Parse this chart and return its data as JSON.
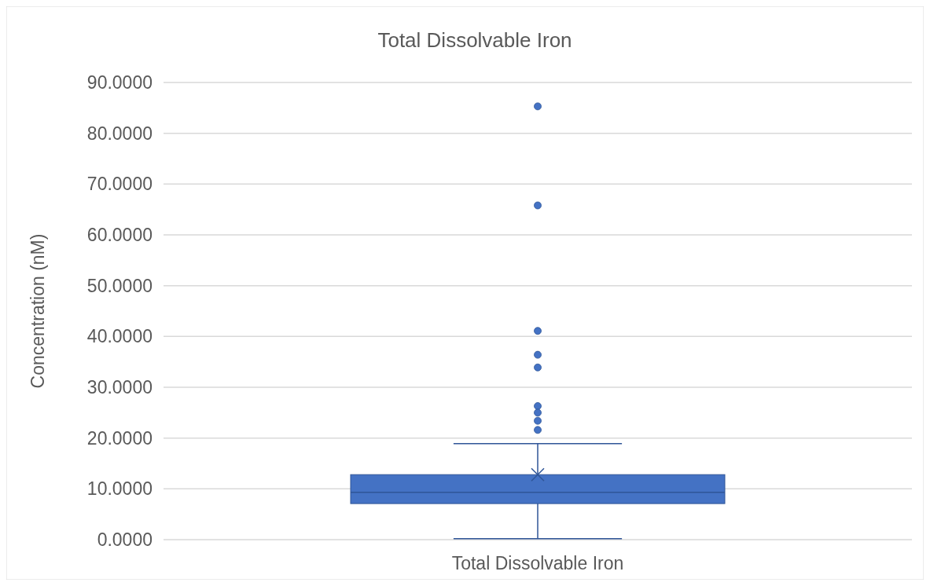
{
  "chart_data": {
    "type": "box",
    "title": "Total Dissolvable Iron",
    "ylabel": "Concentration (nM)",
    "categories": [
      "Total Dissolvable Iron"
    ],
    "color": "#4472c4",
    "boxes": [
      {
        "low": 0.2,
        "q1": 7.1,
        "median": 9.3,
        "q3": 12.8,
        "high": 18.9,
        "mean": 12.8,
        "outliers": [
          85.3,
          65.8,
          41.1,
          36.4,
          33.9,
          26.3,
          25.0,
          23.4,
          21.6
        ]
      }
    ],
    "ylim": [
      0,
      90
    ],
    "yticks": [
      {
        "value": 0,
        "label": "0.0000"
      },
      {
        "value": 10,
        "label": "10.0000"
      },
      {
        "value": 20,
        "label": "20.0000"
      },
      {
        "value": 30,
        "label": "30.0000"
      },
      {
        "value": 40,
        "label": "40.0000"
      },
      {
        "value": 50,
        "label": "50.0000"
      },
      {
        "value": 60,
        "label": "60.0000"
      },
      {
        "value": 70,
        "label": "70.0000"
      },
      {
        "value": 80,
        "label": "80.0000"
      },
      {
        "value": 90,
        "label": "90.0000"
      }
    ],
    "grid": "y"
  }
}
